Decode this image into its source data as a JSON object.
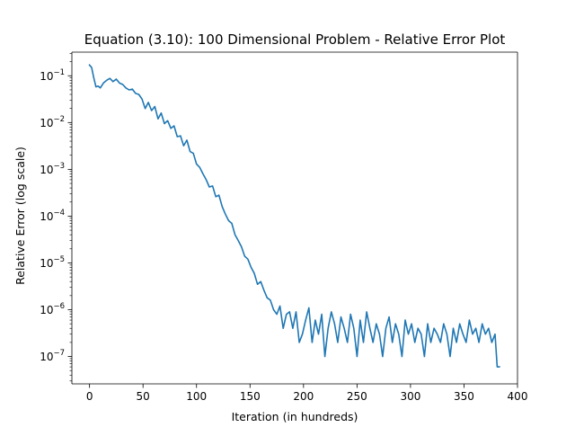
{
  "chart_data": {
    "type": "line",
    "title": "Equation (3.10): 100 Dimensional Problem - Relative Error Plot",
    "xlabel": "Iteration (in hundreds)",
    "ylabel": "Relative Error (log scale)",
    "yscale": "log",
    "xlim": [
      -16.5,
      400
    ],
    "ylim": [
      2.6e-08,
      0.32
    ],
    "grid": false,
    "x_ticks": [
      {
        "value": 0,
        "label": "0"
      },
      {
        "value": 50,
        "label": "50"
      },
      {
        "value": 100,
        "label": "100"
      },
      {
        "value": 150,
        "label": "150"
      },
      {
        "value": 200,
        "label": "200"
      },
      {
        "value": 250,
        "label": "250"
      },
      {
        "value": 300,
        "label": "300"
      },
      {
        "value": 350,
        "label": "350"
      },
      {
        "value": 400,
        "label": "400"
      }
    ],
    "y_ticks": [
      {
        "value": 0.1,
        "base": "10",
        "exp": "−1"
      },
      {
        "value": 0.01,
        "base": "10",
        "exp": "−2"
      },
      {
        "value": 0.001,
        "base": "10",
        "exp": "−3"
      },
      {
        "value": 0.0001,
        "base": "10",
        "exp": "−4"
      },
      {
        "value": 1e-05,
        "base": "10",
        "exp": "−5"
      },
      {
        "value": 1e-06,
        "base": "10",
        "exp": "−6"
      },
      {
        "value": 1e-07,
        "base": "10",
        "exp": "−7"
      }
    ],
    "series": [
      {
        "color": "#1f77b4",
        "x": [
          0,
          2,
          4,
          6,
          8,
          10,
          13,
          16,
          19,
          22,
          25,
          28,
          31,
          34,
          37,
          40,
          43,
          46,
          49,
          52,
          55,
          58,
          61,
          64,
          67,
          70,
          73,
          76,
          79,
          82,
          85,
          88,
          91,
          94,
          97,
          100,
          103,
          106,
          109,
          112,
          115,
          118,
          121,
          124,
          127,
          130,
          133,
          136,
          139,
          142,
          145,
          148,
          151,
          154,
          157,
          160,
          163,
          166,
          169,
          172,
          175,
          178,
          181,
          184,
          187,
          190,
          193,
          196,
          199,
          202,
          205,
          208,
          211,
          214,
          217,
          220,
          223,
          226,
          229,
          232,
          235,
          238,
          241,
          244,
          247,
          250,
          253,
          256,
          259,
          262,
          265,
          268,
          271,
          274,
          277,
          280,
          283,
          286,
          289,
          292,
          295,
          298,
          301,
          304,
          307,
          310,
          313,
          316,
          319,
          322,
          325,
          328,
          331,
          334,
          337,
          340,
          343,
          346,
          349,
          352,
          355,
          358,
          361,
          364,
          367,
          370,
          373,
          376,
          379,
          381,
          383
        ],
        "y": [
          0.17,
          0.15,
          0.09,
          0.058,
          0.06,
          0.055,
          0.07,
          0.08,
          0.088,
          0.075,
          0.085,
          0.07,
          0.065,
          0.055,
          0.05,
          0.052,
          0.042,
          0.04,
          0.032,
          0.02,
          0.027,
          0.018,
          0.022,
          0.012,
          0.016,
          0.0095,
          0.011,
          0.0075,
          0.0085,
          0.005,
          0.0052,
          0.0032,
          0.0042,
          0.0024,
          0.0022,
          0.0013,
          0.0011,
          0.0008,
          0.0006,
          0.00042,
          0.00044,
          0.00026,
          0.00028,
          0.00016,
          0.00011,
          8e-05,
          7e-05,
          4e-05,
          3e-05,
          2.2e-05,
          1.4e-05,
          1.2e-05,
          8e-06,
          6e-06,
          3.5e-06,
          4e-06,
          2.6e-06,
          1.8e-06,
          1.6e-06,
          1e-06,
          8e-07,
          1.2e-06,
          4e-07,
          8e-07,
          9e-07,
          4e-07,
          9e-07,
          2e-07,
          3e-07,
          6e-07,
          1.1e-06,
          2e-07,
          6e-07,
          3e-07,
          8e-07,
          1e-07,
          4e-07,
          9e-07,
          5e-07,
          2e-07,
          7e-07,
          4e-07,
          2e-07,
          8e-07,
          4e-07,
          1e-07,
          6e-07,
          2e-07,
          9e-07,
          4e-07,
          2e-07,
          5e-07,
          3e-07,
          1e-07,
          4e-07,
          7e-07,
          2e-07,
          5e-07,
          3e-07,
          1e-07,
          6e-07,
          3e-07,
          5e-07,
          2e-07,
          4e-07,
          3e-07,
          1e-07,
          5e-07,
          2e-07,
          4e-07,
          3e-07,
          2e-07,
          5e-07,
          3e-07,
          1e-07,
          4e-07,
          2e-07,
          5e-07,
          3e-07,
          2e-07,
          6e-07,
          3e-07,
          4e-07,
          2e-07,
          5e-07,
          3e-07,
          4e-07,
          2e-07,
          3e-07,
          6e-08,
          6e-08
        ]
      }
    ]
  }
}
